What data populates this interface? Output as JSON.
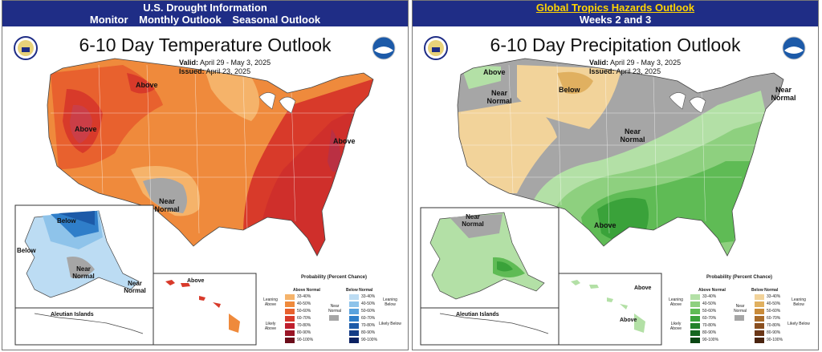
{
  "left": {
    "header": {
      "line1": "U.S. Drought Information",
      "nav": [
        "Monitor",
        "Monthly Outlook",
        "Seasonal Outlook"
      ]
    },
    "title": "6-10 Day Temperature Outlook",
    "valid_label": "Valid:",
    "valid": "April 29 - May 3, 2025",
    "issued_label": "Issued:",
    "issued": "April 23, 2025",
    "labels": {
      "above_north": "Above",
      "above_west": "Above",
      "above_east": "Above",
      "near_normal": "Near Normal",
      "below_ak": "Below",
      "below_ak_west": "Below",
      "near_normal_ak": "Near Normal",
      "near_normal_ak2": "Near Normal",
      "above_hi": "Above",
      "aleutian": "Aleutian Islands"
    },
    "legend": {
      "title": "Probability (Percent Chance)",
      "above_header": "Above Normal",
      "below_header": "Below Normal",
      "leaning_above": "Leaning Above",
      "likely_above": "Likely Above",
      "leaning_below": "Leaning Below",
      "likely_below": "Likely Below",
      "near_normal": "Near Normal",
      "ranges": [
        "33-40%",
        "40-50%",
        "50-60%",
        "60-70%",
        "70-80%",
        "80-90%",
        "90-100%"
      ],
      "above_colors": [
        "#f5b36a",
        "#ef8a3c",
        "#e8612e",
        "#d83a2a",
        "#bf1e2d",
        "#9a1526",
        "#6b0d1a"
      ],
      "below_colors": [
        "#bcdcf3",
        "#8ec3ea",
        "#5aa2dd",
        "#2f7ec9",
        "#1c5aa8",
        "#143b86",
        "#0c2162"
      ]
    }
  },
  "right": {
    "header": {
      "line1": "Global Tropics Hazards Outlook",
      "line2": "Weeks 2 and 3"
    },
    "title": "6-10 Day Precipitation Outlook",
    "valid_label": "Valid:",
    "valid": "April 29 - May 3, 2025",
    "issued_label": "Issued:",
    "issued": "April 23, 2025",
    "labels": {
      "above_nw": "Above",
      "below_north": "Below",
      "near_normal_west": "Near Normal",
      "near_normal_center": "Near Normal",
      "near_normal_ne": "Near Normal",
      "above_south": "Above",
      "near_normal_ak": "Near Normal",
      "above_hi1": "Above",
      "above_hi2": "Above",
      "aleutian": "Aleutian Islands"
    },
    "legend": {
      "title": "Probability (Percent Chance)",
      "above_header": "Above Normal",
      "below_header": "Below Normal",
      "leaning_above": "Leaning Above",
      "likely_above": "Likely Above",
      "leaning_below": "Leaning Below",
      "likely_below": "Likely Below",
      "near_normal": "Near Normal",
      "ranges": [
        "33-40%",
        "40-50%",
        "50-60%",
        "60-70%",
        "70-80%",
        "80-90%",
        "90-100%"
      ],
      "above_colors": [
        "#b3e0a6",
        "#8ed07f",
        "#5fbb55",
        "#3aa23a",
        "#23822a",
        "#15661f",
        "#0b4714"
      ],
      "below_colors": [
        "#f2d39a",
        "#e0b060",
        "#c98b3a",
        "#a96b2a",
        "#8a4f1f",
        "#6b3717",
        "#4a2410"
      ]
    }
  },
  "colors": {
    "header_bg": "#1f2d86",
    "header_link": "#ffd400",
    "near_normal": "#a6a6a6"
  }
}
